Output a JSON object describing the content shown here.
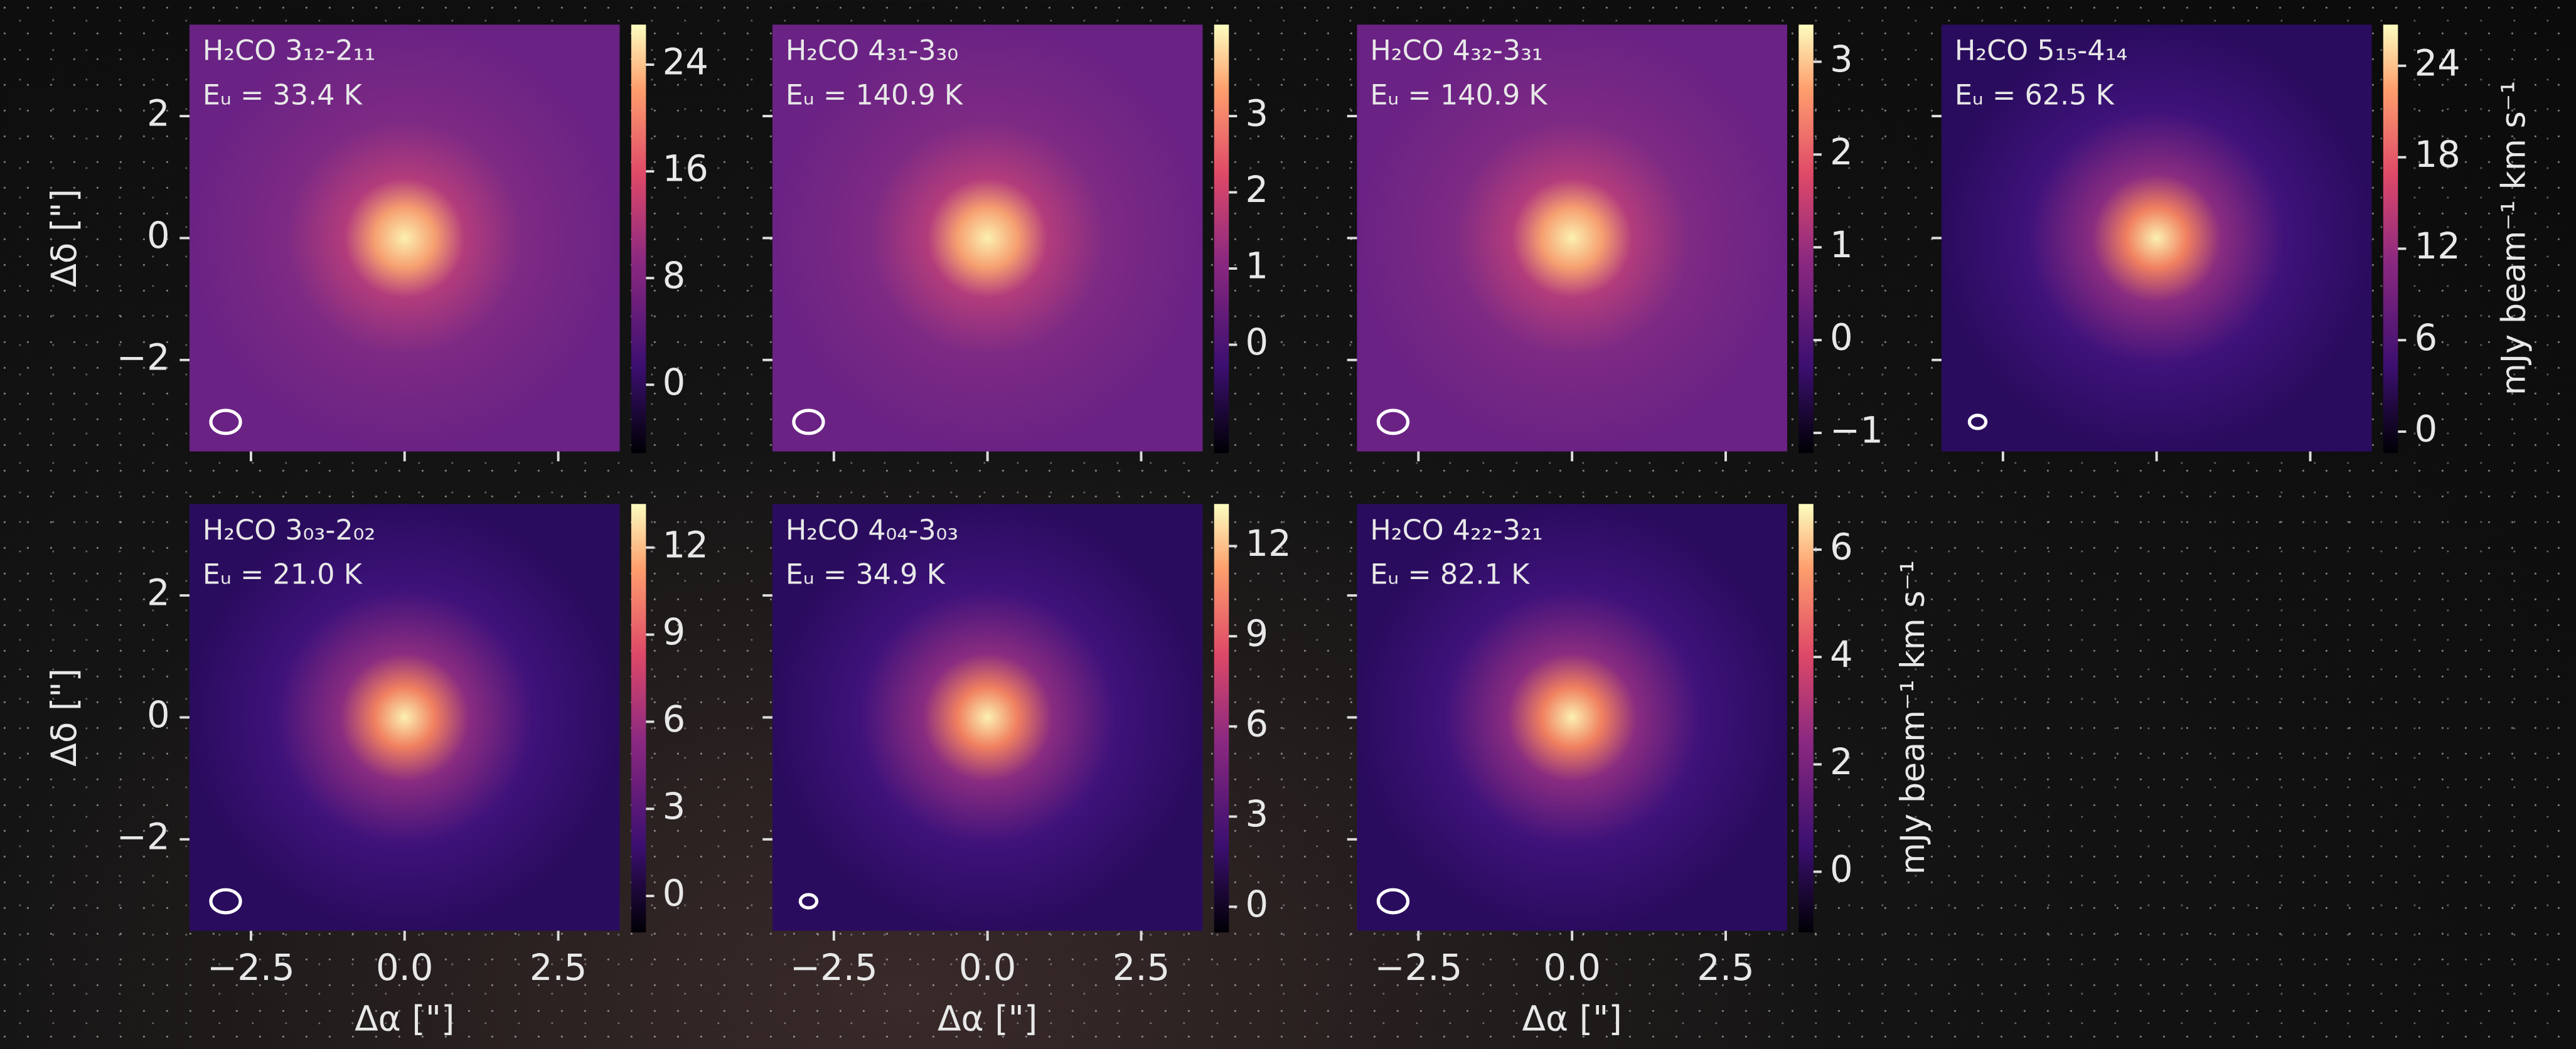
{
  "chart_data": [
    {
      "type": "image",
      "title": "H₂CO 3₁₂-2₁₁",
      "subtitle": "Eᵤ = 33.4 K",
      "clim": [
        -5,
        27
      ],
      "cticks": [
        24,
        16,
        8,
        0
      ]
    },
    {
      "type": "image",
      "title": "H₂CO 4₃₁-3₃₀",
      "subtitle": "Eᵤ = 140.9 K",
      "clim": [
        -1.4,
        4.2
      ],
      "cticks": [
        3,
        2,
        1,
        0
      ]
    },
    {
      "type": "image",
      "title": "H₂CO 4₃₂-3₃₁",
      "subtitle": "Eᵤ = 140.9 K",
      "clim": [
        -1.2,
        3.4
      ],
      "cticks": [
        3,
        2,
        1,
        0,
        {
          "value": -1,
          "label": "−1"
        }
      ]
    },
    {
      "type": "image",
      "title": "H₂CO 5₁₅-4₁₄",
      "subtitle": "Eᵤ = 62.5 K",
      "clim": [
        -1.3,
        26.7
      ],
      "cticks": [
        24,
        18,
        12,
        6,
        0
      ],
      "clabel": "mJy beam⁻¹ km s⁻¹"
    },
    {
      "type": "image",
      "title": "H₂CO 3₀₃-2₀₂",
      "subtitle": "Eᵤ = 21.0 K",
      "clim": [
        -1.2,
        13.5
      ],
      "cticks": [
        12,
        9,
        6,
        3,
        0
      ]
    },
    {
      "type": "image",
      "title": "H₂CO 4₀₄-3₀₃",
      "subtitle": "Eᵤ = 34.9 K",
      "clim": [
        -0.8,
        13.4
      ],
      "cticks": [
        12,
        9,
        6,
        3,
        0
      ]
    },
    {
      "type": "image",
      "title": "H₂CO 4₂₂-3₂₁",
      "subtitle": "Eᵤ = 82.1 K",
      "clim": [
        -1.1,
        6.85
      ],
      "cticks": [
        6,
        4,
        2,
        0
      ],
      "clabel": "mJy beam⁻¹ km s⁻¹"
    }
  ],
  "axes": {
    "xlabel": "Δα [\"]",
    "ylabel": "Δδ [\"]",
    "xlim": [
      -3.5,
      3.5
    ],
    "ylim": [
      -3.5,
      3.5
    ],
    "xticks": [
      {
        "value": -2.5,
        "label": "−2.5"
      },
      {
        "value": 0,
        "label": "0.0"
      },
      2.5
    ],
    "yticks": [
      {
        "value": -2,
        "label": "−2"
      },
      0,
      2
    ]
  }
}
